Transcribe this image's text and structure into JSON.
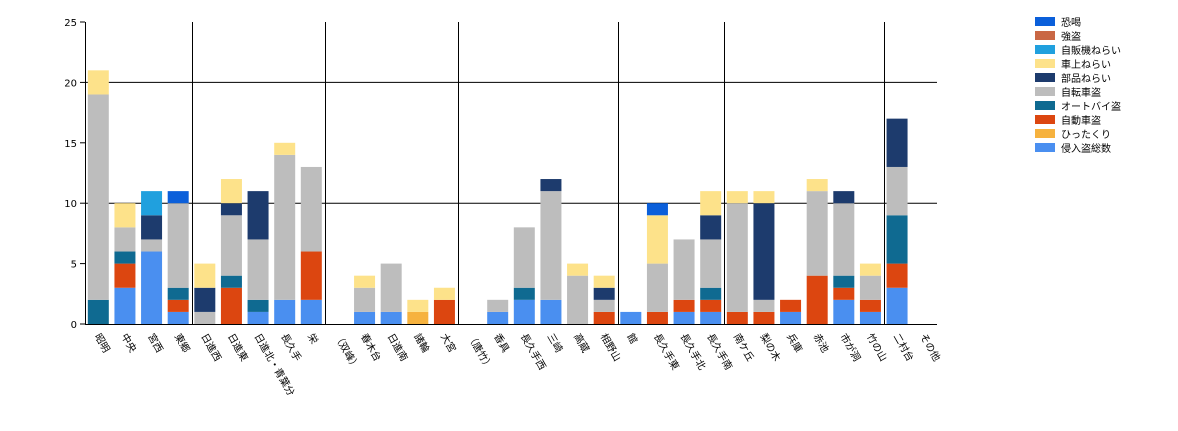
{
  "chart_data": {
    "type": "bar",
    "stacked": true,
    "title": "",
    "xlabel": "",
    "ylabel": "",
    "ylim": [
      0,
      25
    ],
    "yticks": [
      0,
      5,
      10,
      15,
      20,
      25
    ],
    "grid": "horizontal at 10 and 20; vertical group separators",
    "legend_position": "top-right",
    "categories": [
      "昭明",
      "中央",
      "宮西",
      "東郷",
      "日進西",
      "日進東",
      "日進北・青葉分",
      "長久手",
      "栄",
      "（双峰）",
      "春木台",
      "日進南",
      "諸輪",
      "大宮",
      "（唐竹）",
      "香具",
      "長久手西",
      "三崎",
      "高蔵",
      "相野山",
      "館",
      "長久手東",
      "長久手北",
      "長久手南",
      "南ケ丘",
      "梨の木",
      "兵庫",
      "赤池",
      "市が洞",
      "竹の山",
      "二村台",
      "その他"
    ],
    "series": [
      {
        "name": "侵入盗総数",
        "color": "#4a8ff0",
        "values": [
          0,
          3,
          6,
          1,
          0,
          0,
          1,
          2,
          2,
          0,
          1,
          1,
          0,
          0,
          0,
          1,
          2,
          2,
          0,
          0,
          1,
          0,
          1,
          1,
          0,
          0,
          1,
          0,
          2,
          1,
          3,
          0
        ]
      },
      {
        "name": "ひったくり",
        "color": "#f6b23e",
        "values": [
          0,
          0,
          0,
          0,
          0,
          0,
          0,
          0,
          0,
          0,
          0,
          0,
          1,
          0,
          0,
          0,
          0,
          0,
          0,
          0,
          0,
          0,
          0,
          0,
          0,
          0,
          0,
          0,
          0,
          0,
          0,
          0
        ]
      },
      {
        "name": "自動車盗",
        "color": "#dc4610",
        "values": [
          0,
          2,
          0,
          1,
          0,
          3,
          0,
          0,
          4,
          0,
          0,
          0,
          0,
          2,
          0,
          0,
          0,
          0,
          0,
          1,
          0,
          1,
          1,
          1,
          1,
          1,
          1,
          4,
          1,
          1,
          2,
          0
        ]
      },
      {
        "name": "オートバイ盗",
        "color": "#0f6a91",
        "values": [
          2,
          1,
          0,
          1,
          0,
          1,
          1,
          0,
          0,
          0,
          0,
          0,
          0,
          0,
          0,
          0,
          1,
          0,
          0,
          0,
          0,
          0,
          0,
          1,
          0,
          0,
          0,
          0,
          1,
          0,
          4,
          0
        ]
      },
      {
        "name": "自転車盗",
        "color": "#bdbdbd",
        "values": [
          17,
          2,
          1,
          7,
          1,
          5,
          5,
          12,
          7,
          0,
          2,
          4,
          0,
          0,
          0,
          1,
          5,
          9,
          4,
          1,
          0,
          4,
          5,
          4,
          9,
          1,
          0,
          7,
          6,
          2,
          4,
          0
        ]
      },
      {
        "name": "部品ねらい",
        "color": "#1d3b6d",
        "values": [
          0,
          0,
          2,
          0,
          2,
          1,
          4,
          0,
          0,
          0,
          0,
          0,
          0,
          0,
          0,
          0,
          0,
          1,
          0,
          1,
          0,
          0,
          0,
          2,
          0,
          8,
          0,
          0,
          1,
          0,
          4,
          0
        ]
      },
      {
        "name": "車上ねらい",
        "color": "#fde28a",
        "values": [
          2,
          2,
          0,
          0,
          2,
          2,
          0,
          1,
          0,
          0,
          1,
          0,
          1,
          1,
          0,
          0,
          0,
          0,
          1,
          1,
          0,
          4,
          0,
          2,
          1,
          1,
          0,
          1,
          0,
          1,
          0,
          0
        ]
      },
      {
        "name": "自販機ねらい",
        "color": "#20a0de",
        "values": [
          0,
          0,
          2,
          0,
          0,
          0,
          0,
          0,
          0,
          0,
          0,
          0,
          0,
          0,
          0,
          0,
          0,
          0,
          0,
          0,
          0,
          0,
          0,
          0,
          0,
          0,
          0,
          0,
          0,
          0,
          0,
          0
        ]
      },
      {
        "name": "強盗",
        "color": "#c96744",
        "values": [
          0,
          0,
          0,
          0,
          0,
          0,
          0,
          0,
          0,
          0,
          0,
          0,
          0,
          0,
          0,
          0,
          0,
          0,
          0,
          0,
          0,
          0,
          0,
          0,
          0,
          0,
          0,
          0,
          0,
          0,
          0,
          0
        ]
      },
      {
        "name": "恐喝",
        "color": "#0b5fda",
        "values": [
          0,
          0,
          0,
          1,
          0,
          0,
          0,
          0,
          0,
          0,
          0,
          0,
          0,
          0,
          0,
          0,
          0,
          0,
          0,
          0,
          0,
          1,
          0,
          0,
          0,
          0,
          0,
          0,
          0,
          0,
          0,
          0
        ]
      }
    ],
    "group_separators_after": [
      "東郷",
      "栄",
      "大宮",
      "相野山",
      "長久手南",
      "竹の山"
    ]
  }
}
